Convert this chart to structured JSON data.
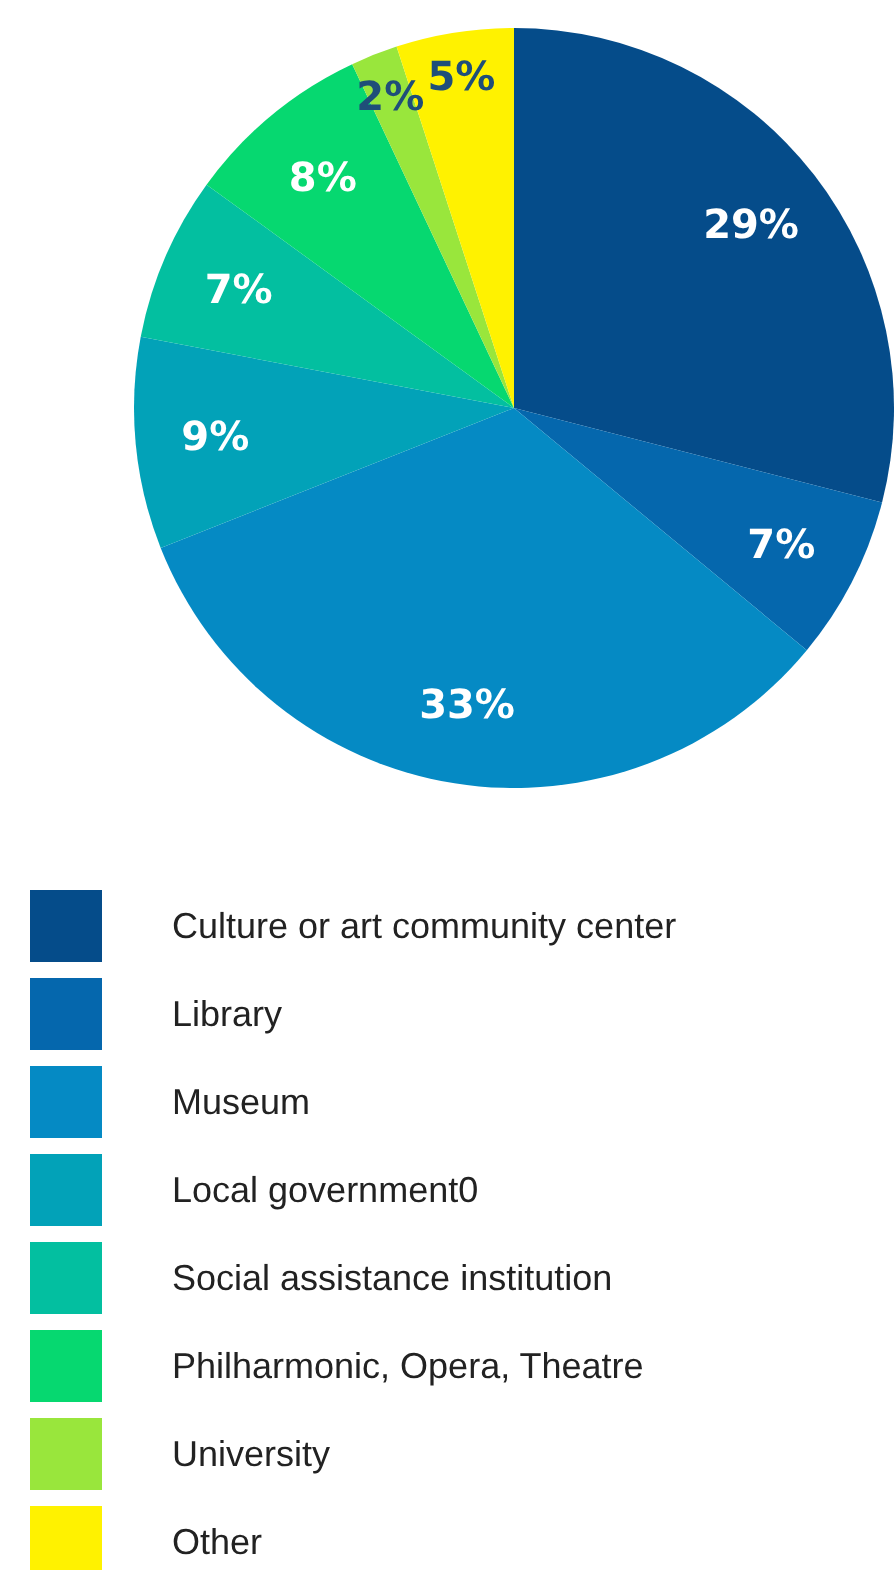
{
  "chart_data": {
    "type": "pie",
    "categories": [
      "Culture or art community center",
      "Library",
      "Museum",
      "Local government0",
      "Social assistance institution",
      "Philharmonic, Opera, Theatre",
      "University",
      "Other"
    ],
    "values": [
      29,
      7,
      33,
      9,
      7,
      8,
      2,
      5
    ],
    "value_labels": [
      "29%",
      "7%",
      "33%",
      "9%",
      "7%",
      "8%",
      "2%",
      "5%"
    ],
    "colors": [
      "#054c8a",
      "#0567ad",
      "#058ac4",
      "#02a2b8",
      "#03bfa0",
      "#06d870",
      "#99e63c",
      "#fff200"
    ],
    "legend": "bottom"
  }
}
